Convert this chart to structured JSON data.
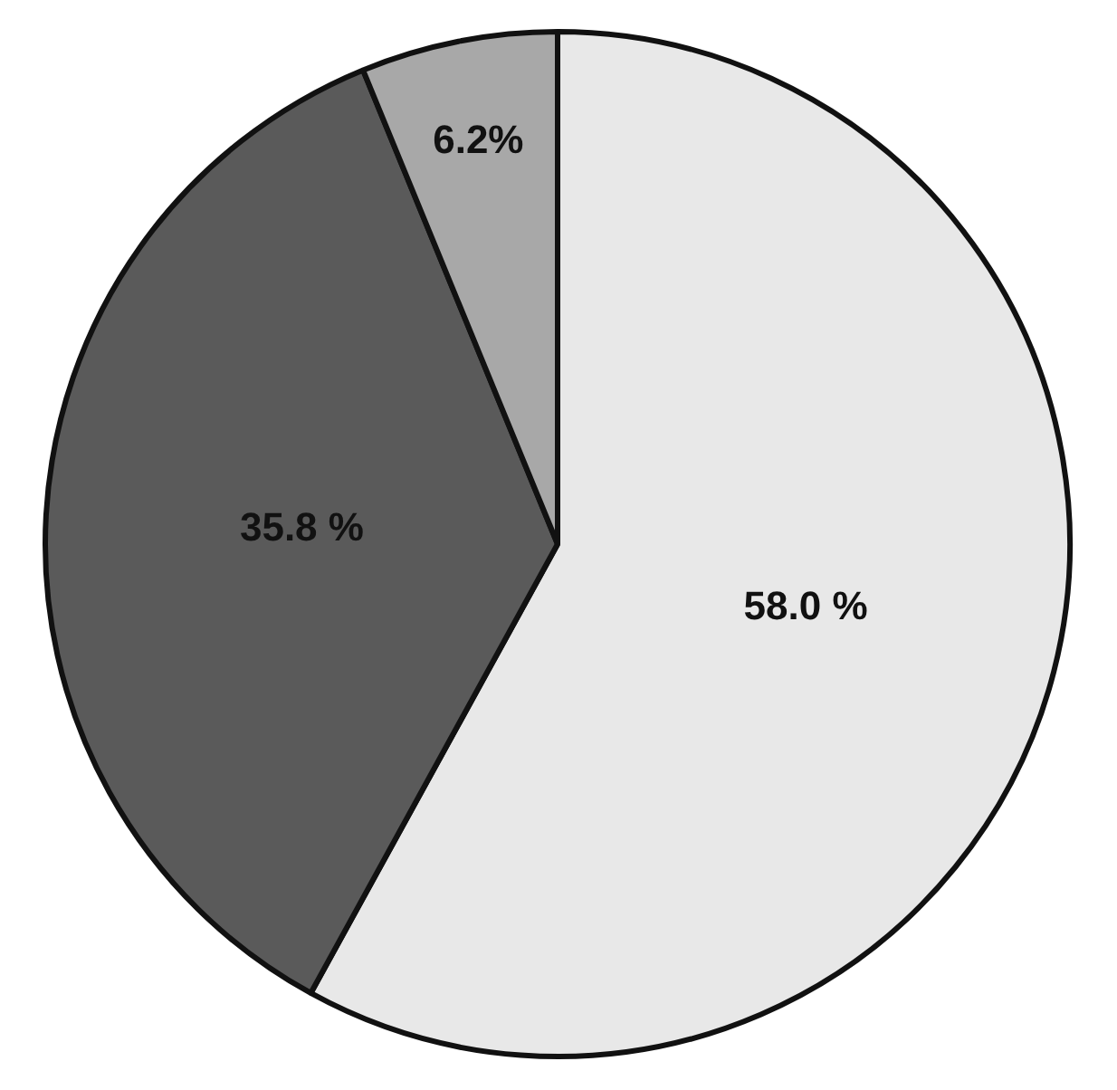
{
  "chart_data": {
    "type": "pie",
    "categories": [
      null,
      null,
      null
    ],
    "values": [
      58.0,
      35.8,
      6.2
    ],
    "colors": [
      "#e8e8e8",
      "#5a5a5a",
      "#a8a8a8"
    ],
    "value_labels": [
      "58.0 %",
      "35.8 %",
      "6.2%"
    ],
    "legend": false
  }
}
